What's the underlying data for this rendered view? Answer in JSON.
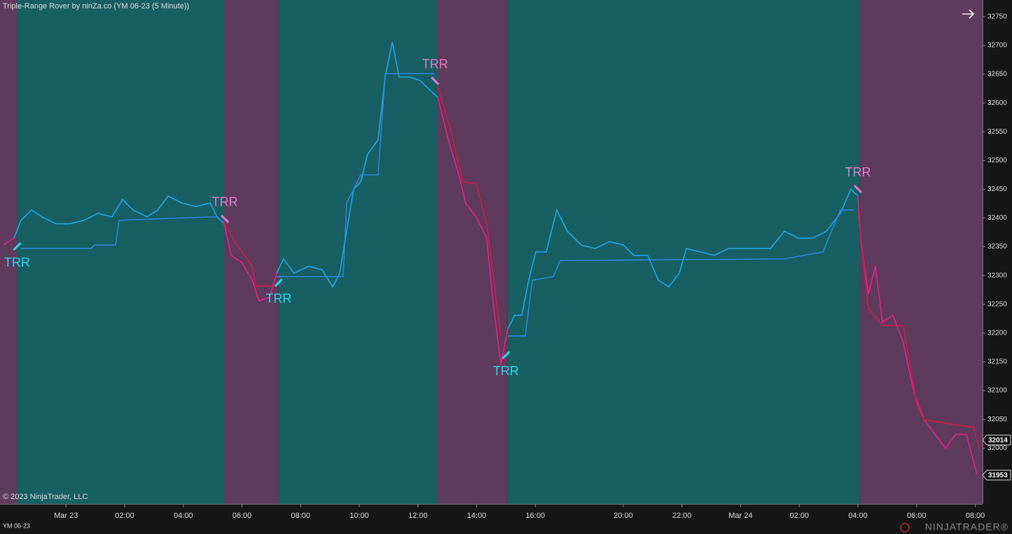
{
  "chart_data": {
    "type": "line",
    "title": "Triple-Range Rover by ninZa.co (YM 06-23 (5 Minute))",
    "copyright": "© 2023 NinjaTrader, LLC",
    "instrument": "YM 06-23",
    "logo": "NINJATRADER®",
    "xlim": [
      0,
      402
    ],
    "xticks": [
      {
        "value": 27,
        "label": "Mar 23"
      },
      {
        "value": 51,
        "label": "02:00"
      },
      {
        "value": 75,
        "label": "04:00"
      },
      {
        "value": 99,
        "label": "06:00"
      },
      {
        "value": 123,
        "label": "08:00"
      },
      {
        "value": 147,
        "label": "10:00"
      },
      {
        "value": 171,
        "label": "12:00"
      },
      {
        "value": 195,
        "label": "14:00"
      },
      {
        "value": 219,
        "label": "16:00"
      },
      {
        "value": 255,
        "label": "20:00"
      },
      {
        "value": 279,
        "label": "22:00"
      },
      {
        "value": 303,
        "label": "Mar 24"
      },
      {
        "value": 327,
        "label": "02:00"
      },
      {
        "value": 351,
        "label": "04:00"
      },
      {
        "value": 375,
        "label": "06:00"
      },
      {
        "value": 399,
        "label": "08:00"
      }
    ],
    "ylim": [
      31903,
      32779
    ],
    "yticks": [
      32000,
      32050,
      32100,
      32150,
      32200,
      32250,
      32300,
      32350,
      32400,
      32450,
      32500,
      32550,
      32600,
      32650,
      32700,
      32750
    ],
    "regions": [
      {
        "start": 0,
        "end": 6.9,
        "color": "#5e3b5c"
      },
      {
        "start": 6.9,
        "end": 91.7,
        "color": "#185f64"
      },
      {
        "start": 91.7,
        "end": 113.8,
        "color": "#5e3b5c"
      },
      {
        "start": 113.8,
        "end": 178.8,
        "color": "#185f64"
      },
      {
        "start": 178.8,
        "end": 207.7,
        "color": "#5e3b5c"
      },
      {
        "start": 207.7,
        "end": 351.6,
        "color": "#185f64"
      },
      {
        "start": 351.6,
        "end": 402,
        "color": "#5e3b5c"
      }
    ],
    "series": [
      {
        "color": "#e8208a",
        "width": 1.6,
        "x": [
          1.4,
          5.7
        ],
        "values": [
          32353,
          32365
        ]
      },
      {
        "color": "#1ea8e6",
        "width": 1.6,
        "x": [
          5.7,
          8.6,
          12.9,
          17.2,
          22.9,
          28.7,
          34.4,
          40.1,
          45.8,
          50.1,
          54.4,
          60.2,
          64.5,
          68.8,
          74.5,
          80.2,
          86,
          88.8,
          91.7
        ],
        "values": [
          32365,
          32396,
          32414,
          32402,
          32390,
          32390,
          32396,
          32408,
          32402,
          32432,
          32414,
          32402,
          32414,
          32438,
          32426,
          32420,
          32426,
          32402,
          32390
        ]
      },
      {
        "color": "#e8208a",
        "width": 1.6,
        "x": [
          91.7,
          94.6,
          98.9,
          103.2,
          106,
          110.3,
          113.2
        ],
        "values": [
          32390,
          32335,
          32323,
          32292,
          32256,
          32262,
          32304
        ]
      },
      {
        "color": "#1ea8e6",
        "width": 1.6,
        "x": [
          113.2,
          116,
          120.3,
          126.1,
          131.8,
          136.1,
          139,
          141.8,
          144.7,
          147.6,
          150.4,
          154.7,
          157.6,
          160.5,
          163.3,
          167.6,
          171.9,
          176.2,
          179.1
        ],
        "values": [
          32304,
          32329,
          32304,
          32316,
          32310,
          32280,
          32304,
          32377,
          32450,
          32463,
          32511,
          32536,
          32645,
          32706,
          32645,
          32645,
          32639,
          32621,
          32610
        ]
      },
      {
        "color": "#e8208a",
        "width": 1.6,
        "x": [
          179.1,
          183.4,
          187.7,
          190.5,
          194.8,
          199.1,
          202,
          204.9,
          207.7
        ],
        "values": [
          32610,
          32536,
          32475,
          32426,
          32402,
          32365,
          32243,
          32146,
          32207
        ]
      },
      {
        "color": "#1ea8e6",
        "width": 1.6,
        "x": [
          207.7,
          210.6,
          213.5,
          216.3,
          219.2,
          223.5,
          227.8,
          232.1,
          237.8,
          243.6,
          249.3,
          255,
          259.3,
          265,
          269.3,
          273.6,
          277.9,
          280.8,
          286.5,
          292.3,
          298,
          303.7,
          309.5,
          315.2,
          320.9,
          326.6,
          332.4,
          338.1,
          343.8,
          348.1,
          351
        ],
        "values": [
          32207,
          32231,
          32231,
          32292,
          32341,
          32341,
          32414,
          32377,
          32353,
          32347,
          32359,
          32353,
          32335,
          32335,
          32292,
          32280,
          32304,
          32347,
          32341,
          32335,
          32347,
          32347,
          32347,
          32347,
          32377,
          32365,
          32365,
          32377,
          32408,
          32450,
          32438
        ]
      },
      {
        "color": "#e8208a",
        "width": 1.6,
        "x": [
          351,
          352.4,
          355.3,
          358.2,
          361,
          365.3,
          369.6,
          373.9,
          378.2,
          382.5,
          386.8,
          391.1,
          395.4,
          399.7
        ],
        "values": [
          32438,
          32353,
          32268,
          32316,
          32219,
          32231,
          32183,
          32097,
          32049,
          32024,
          32000,
          32024,
          32024,
          31953
        ]
      },
      {
        "color": "#2f8be6",
        "width": 1.4,
        "x": [
          8.6,
          37.2,
          38.7,
          47.3,
          48.7,
          86,
          88.8
        ],
        "values": [
          32347,
          32347,
          32353,
          32353,
          32396,
          32402,
          32402
        ]
      },
      {
        "color": "#d81a48",
        "width": 1.4,
        "x": [
          91.1,
          96,
          103.2,
          104.6,
          113.2
        ],
        "values": [
          32396,
          32359,
          32316,
          32282,
          32282
        ]
      },
      {
        "color": "#2f8be6",
        "width": 1.4,
        "x": [
          113.2,
          140.4,
          141.8,
          147.6,
          154.7,
          157.6,
          177.7
        ],
        "values": [
          32298,
          32298,
          32426,
          32475,
          32475,
          32651,
          32651
        ]
      },
      {
        "color": "#d81a48",
        "width": 1.4,
        "x": [
          179.1,
          184.8,
          189.1,
          194.8,
          199.1,
          204.9
        ],
        "values": [
          32627,
          32548,
          32463,
          32460,
          32390,
          32195
        ]
      },
      {
        "color": "#2f8be6",
        "width": 1.4,
        "x": [
          207.7,
          214.9,
          217.8,
          226.4,
          229.2,
          320.9,
          336.7,
          343.8,
          349.6
        ],
        "values": [
          32195,
          32195,
          32292,
          32298,
          32326,
          32329,
          32341,
          32414,
          32414
        ]
      },
      {
        "color": "#d81a48",
        "width": 1.4,
        "x": [
          351,
          355.3,
          361,
          369.6,
          375.2,
          378.2,
          398.3,
          400.6
        ],
        "values": [
          32414,
          32243,
          32213,
          32213,
          32073,
          32049,
          32036,
          32000
        ]
      }
    ],
    "annotations": [
      {
        "text": "TRR",
        "x": 7,
        "y": 32353,
        "position": "below",
        "color": "#2ad8e8"
      },
      {
        "text": "TRR",
        "x": 92,
        "y": 32396,
        "position": "above",
        "color": "#e37ccc"
      },
      {
        "text": "TRR",
        "x": 114,
        "y": 32290,
        "position": "below",
        "color": "#2ad8e8"
      },
      {
        "text": "TRR",
        "x": 178,
        "y": 32636,
        "position": "above",
        "color": "#e37ccc"
      },
      {
        "text": "TRR",
        "x": 207,
        "y": 32164,
        "position": "below",
        "color": "#2ad8e8"
      },
      {
        "text": "TRR",
        "x": 351,
        "y": 32448,
        "position": "above",
        "color": "#e37ccc"
      }
    ],
    "price_markers": [
      32014,
      31953
    ]
  }
}
